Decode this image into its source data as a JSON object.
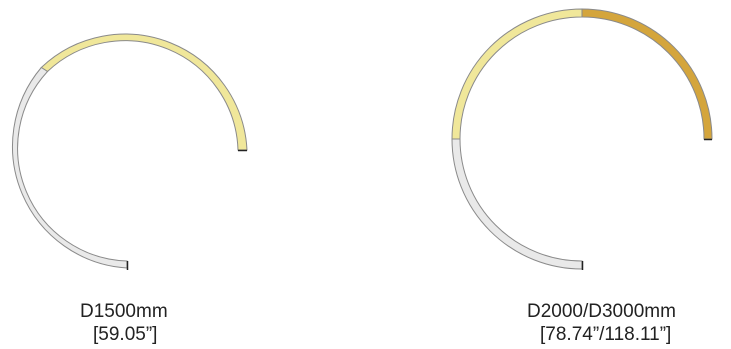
{
  "rings": [
    {
      "name": "D1500mm",
      "label": "D1500mm",
      "sublabel": "[59.05”]",
      "segments": [
        {
          "color": "#f0e79a",
          "role": "upper"
        },
        {
          "color": "#e9e9e9",
          "role": "lower"
        }
      ]
    },
    {
      "name": "D2000/D3000mm",
      "label": "D2000/D3000mm",
      "sublabel": "[78.74”/118.11”]",
      "segments": [
        {
          "color": "#d4a53c",
          "role": "outer-top-right"
        },
        {
          "color": "#f0e79a",
          "role": "top-left"
        },
        {
          "color": "#e9e9e9",
          "role": "lower"
        }
      ]
    }
  ],
  "colors": {
    "gold": "#d4a53c",
    "pale-yellow": "#f0e79a",
    "light-grey": "#e9e9e9",
    "stroke": "#8a8a8a",
    "end-cap": "#222222"
  }
}
